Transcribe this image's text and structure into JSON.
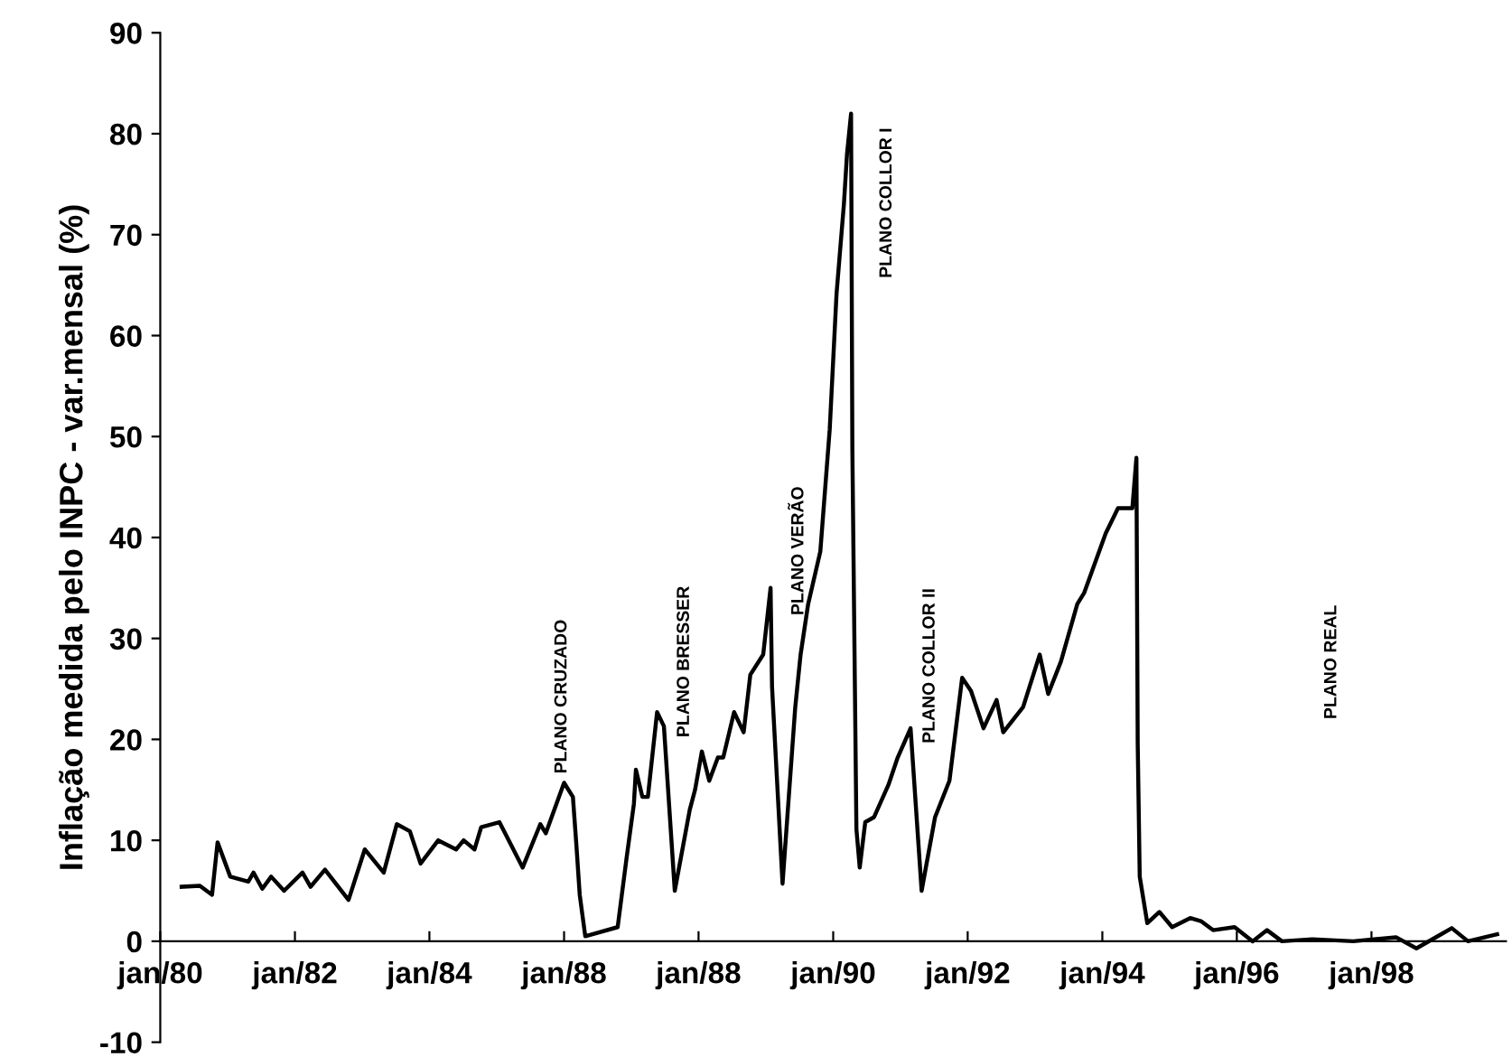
{
  "chart_data": {
    "type": "line",
    "ylabel": "Inflação medida pelo INPC - var.mensal (%)",
    "x": [
      "1980-04-26",
      "1980-08-03",
      "1980-10-08",
      "1980-11-07",
      "1981-01-15",
      "1981-04-23",
      "1981-05-21",
      "1981-07-08",
      "1981-08-25",
      "1981-11-03",
      "1982-02-11",
      "1982-03-27",
      "1982-06-13",
      "1982-10-19",
      "1983-01-15",
      "1983-04-28",
      "1983-07-08",
      "1983-09-17",
      "1983-11-14",
      "1984-02-18",
      "1984-05-25",
      "1984-07-05",
      "1984-09-02",
      "1984-10-08",
      "1985-01-15",
      "1985-05-21",
      "1985-08-25",
      "1985-09-24",
      "1986-01-01",
      "1986-02-18",
      "1986-03-09",
      "1986-03-27",
      "1986-04-26",
      "1986-10-19",
      "1986-12-06",
      "1987-01-15",
      "1987-01-26",
      "1987-03-02",
      "1987-04-01",
      "1987-05-21",
      "1987-06-27",
      "1987-08-25",
      "1987-11-14",
      "1987-12-13",
      "1988-01-19",
      "1988-02-28",
      "1988-04-15",
      "1988-05-14",
      "1988-07-12",
      "1988-09-02",
      "1988-10-08",
      "1988-12-17",
      "1989-01-26",
      "1989-02-03",
      "1989-04-01",
      "1989-06-09",
      "1989-07-08",
      "1989-08-18",
      "1989-10-23",
      "1989-12-13",
      "1990-01-19",
      "1990-02-28",
      "1990-03-17",
      "1990-04-08",
      "1990-04-15",
      "1990-05-07",
      "1990-05-25",
      "1990-06-24",
      "1990-08-11",
      "1990-10-28",
      "1990-12-17",
      "1991-02-25",
      "1991-04-26",
      "1991-07-08",
      "1991-09-24",
      "1991-12-02",
      "1992-01-19",
      "1992-03-27",
      "1992-06-06",
      "1992-07-12",
      "1992-10-28",
      "1993-01-26",
      "1993-03-13",
      "1993-05-21",
      "1993-08-18",
      "1993-09-24",
      "1994-01-19",
      "1994-03-27",
      "1994-06-13",
      "1994-07-05",
      "1994-07-12",
      "1994-07-23",
      "1994-09-02",
      "1994-11-07",
      "1995-01-15",
      "1995-04-23",
      "1995-06-20",
      "1995-08-25",
      "1995-12-20",
      "1996-03-27",
      "1996-06-13",
      "1996-09-02",
      "1997-02-14",
      "1997-09-24",
      "1998-05-14",
      "1998-09-02",
      "1998-12-27",
      "1999-03-13",
      "1999-06-09",
      "1999-11-14"
    ],
    "series": [
      {
        "color": "#000000",
        "values": [
          5.4,
          5.5,
          4.6,
          9.8,
          6.4,
          5.9,
          6.8,
          5.2,
          6.4,
          5.0,
          6.8,
          5.4,
          7.1,
          4.1,
          9.1,
          6.8,
          11.6,
          10.9,
          7.7,
          10.0,
          9.1,
          10.0,
          9.1,
          11.3,
          11.8,
          7.3,
          11.6,
          10.7,
          15.7,
          14.3,
          9.5,
          4.6,
          0.5,
          1.4,
          8.2,
          13.6,
          17.0,
          14.3,
          14.3,
          22.7,
          21.3,
          5.0,
          13.0,
          15.0,
          18.8,
          15.9,
          18.2,
          18.2,
          22.7,
          20.7,
          26.4,
          28.4,
          35.0,
          25.2,
          5.7,
          23.2,
          28.4,
          33.4,
          38.6,
          50.7,
          64.1,
          73.0,
          78.0,
          82.0,
          48.8,
          11.1,
          7.3,
          11.8,
          12.3,
          15.5,
          18.2,
          21.1,
          5.0,
          12.3,
          15.9,
          26.1,
          24.8,
          21.1,
          23.9,
          20.7,
          23.2,
          28.4,
          24.5,
          27.7,
          33.4,
          34.5,
          40.4,
          42.9,
          42.9,
          47.9,
          19.6,
          6.4,
          1.8,
          2.9,
          1.4,
          2.3,
          2.0,
          1.1,
          1.4,
          0.0,
          1.1,
          0.0,
          0.2,
          0.0,
          0.4,
          -0.7,
          0.5,
          1.3,
          0.0,
          0.7
        ]
      }
    ],
    "xlim": [
      "1980-01",
      "2000-01"
    ],
    "ylim": [
      -10,
      90
    ],
    "xticks": [
      {
        "value": "1980-01",
        "label": "jan/80"
      },
      {
        "value": "1982-01",
        "label": "jan/82"
      },
      {
        "value": "1984-01",
        "label": "jan/84"
      },
      {
        "value": "1986-01",
        "label": "jan/88"
      },
      {
        "value": "1988-01",
        "label": "jan/88"
      },
      {
        "value": "1990-01",
        "label": "jan/90"
      },
      {
        "value": "1992-01",
        "label": "jan/92"
      },
      {
        "value": "1994-01",
        "label": "jan/94"
      },
      {
        "value": "1996-01",
        "label": "jan/96"
      },
      {
        "value": "1998-01",
        "label": "jan/98"
      }
    ],
    "yticks": [
      -10,
      0,
      10,
      20,
      30,
      40,
      50,
      60,
      70,
      80,
      90
    ],
    "grid": false,
    "legend": false,
    "marker": "none",
    "line_style": "solid",
    "annotations": [
      "PLANO CRUZADO",
      "PLANO BRESSER",
      "PLANO VERÃO",
      "PLANO COLLOR I",
      "PLANO COLLOR II",
      "PLANO REAL"
    ]
  }
}
